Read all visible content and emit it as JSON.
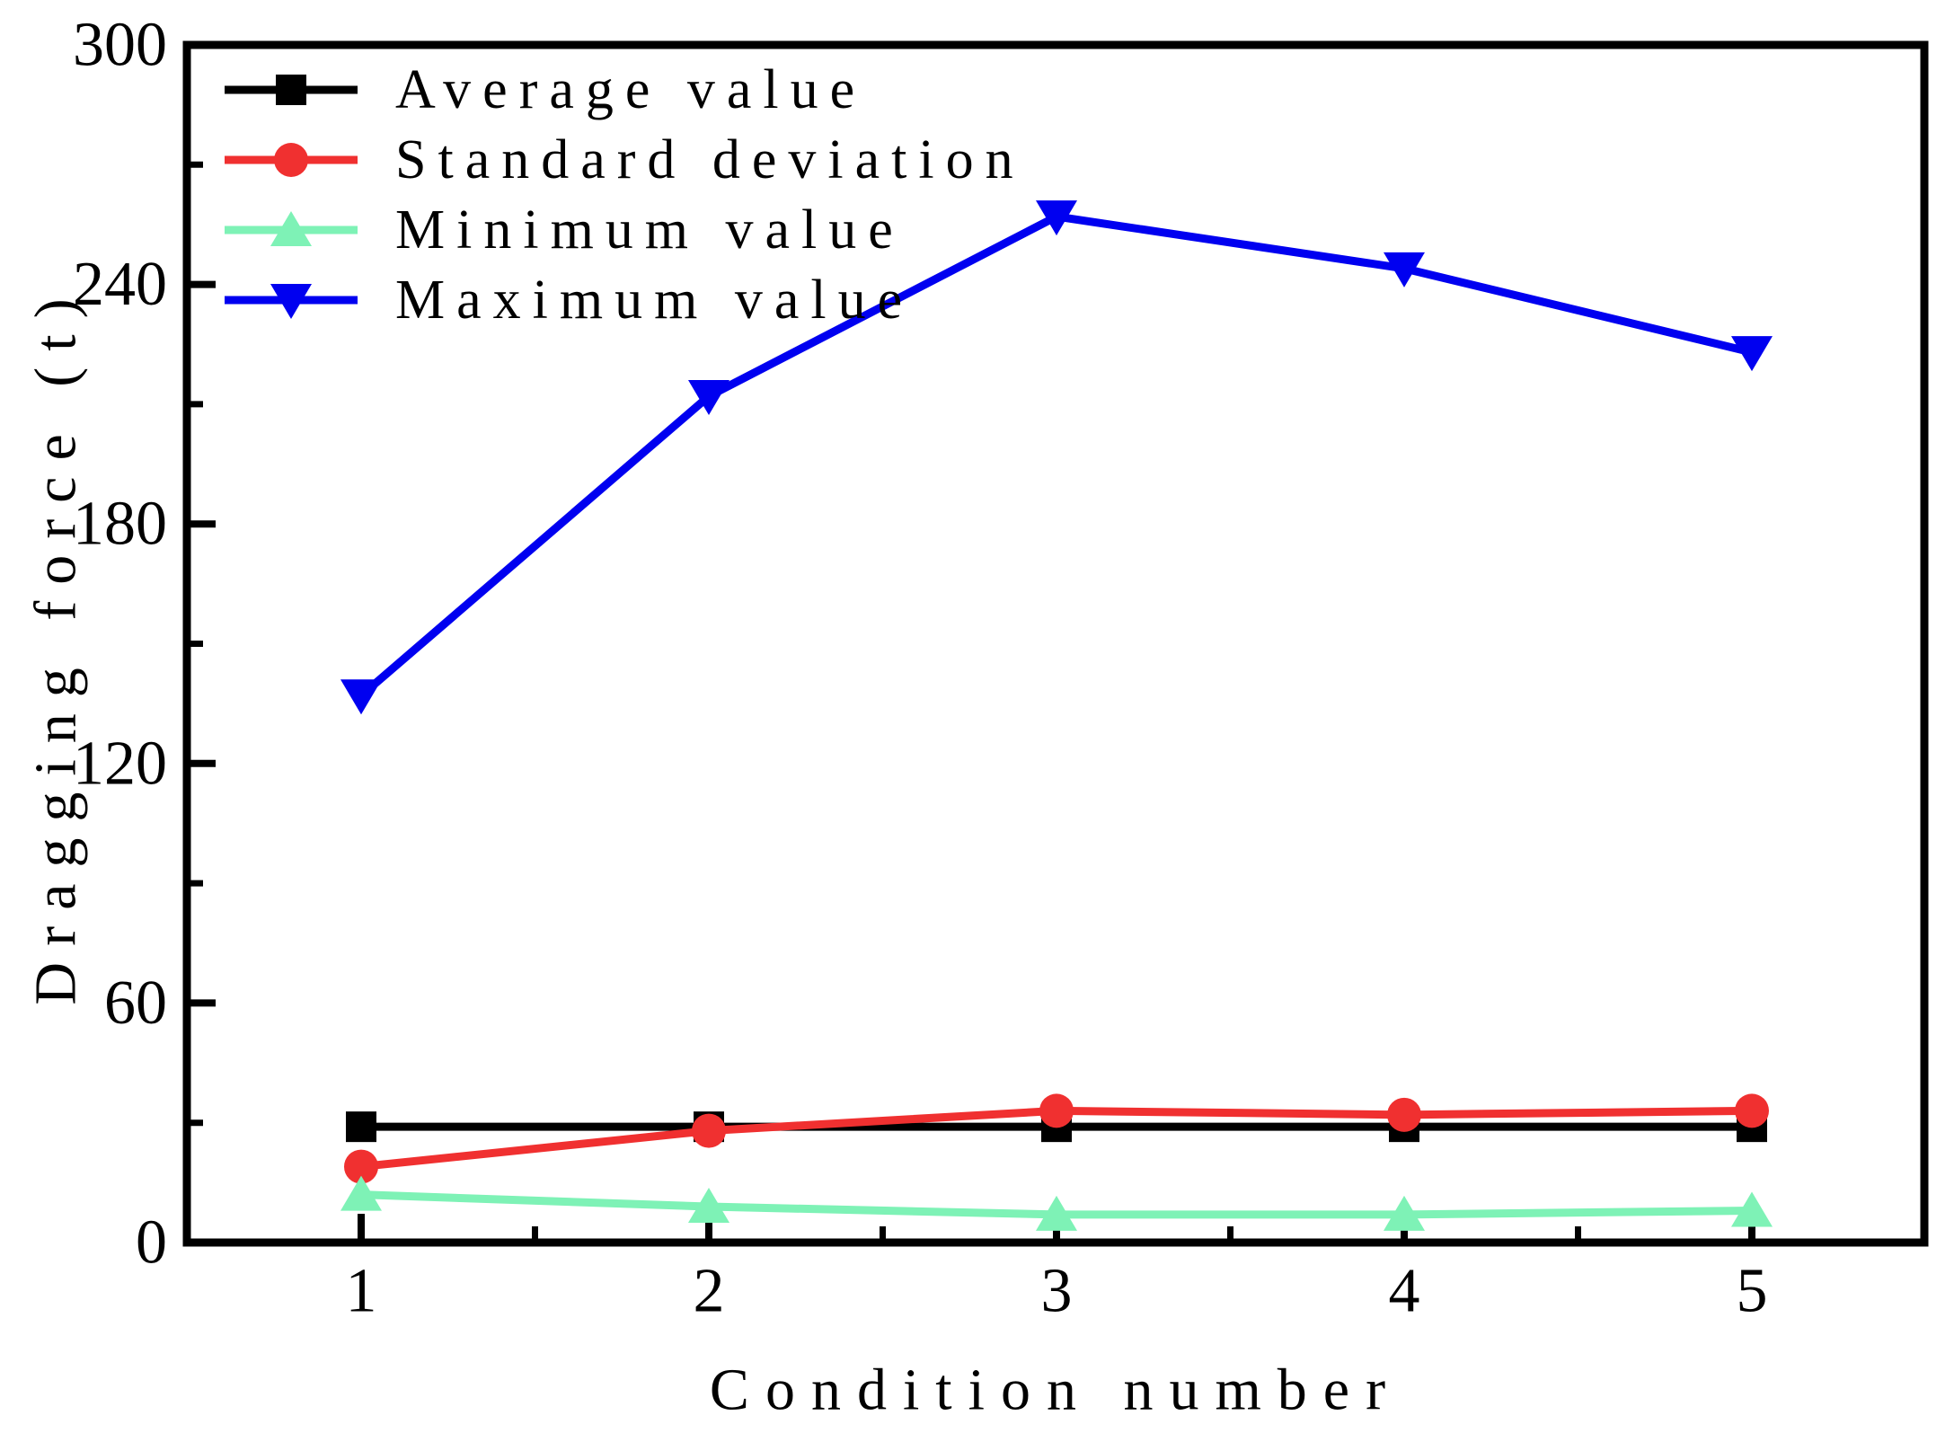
{
  "chart_data": {
    "type": "line",
    "title": "",
    "xlabel": "Condition number",
    "ylabel": "Dragging force (t)",
    "x": [
      1,
      2,
      3,
      4,
      5
    ],
    "xlim": [
      0.5,
      5.5
    ],
    "ylim": [
      0,
      300
    ],
    "yticks_major": [
      0,
      60,
      120,
      180,
      240,
      300
    ],
    "yticks_minor": [
      30,
      90,
      150,
      210,
      270
    ],
    "xticks_major": [
      1,
      2,
      3,
      4,
      5
    ],
    "xticks_minor": [
      1.5,
      2.5,
      3.5,
      4.5
    ],
    "grid": false,
    "legend_position": "top-left-inside",
    "background_color": "#ffffff",
    "axis_color": "#000000",
    "series": [
      {
        "name": "Average value",
        "color": "#000000",
        "marker": "square",
        "values": [
          29,
          29,
          29,
          29,
          29
        ]
      },
      {
        "name": "Standard deviation",
        "color": "#F03030",
        "marker": "circle",
        "values": [
          19,
          28,
          33,
          32,
          33
        ]
      },
      {
        "name": "Minimum value",
        "color": "#7EF2B6",
        "marker": "triangle-up",
        "values": [
          12,
          9,
          7,
          7,
          8
        ]
      },
      {
        "name": "Maximum value",
        "color": "#0000F0",
        "marker": "triangle-down",
        "values": [
          137,
          212,
          257,
          244,
          223
        ]
      }
    ]
  }
}
